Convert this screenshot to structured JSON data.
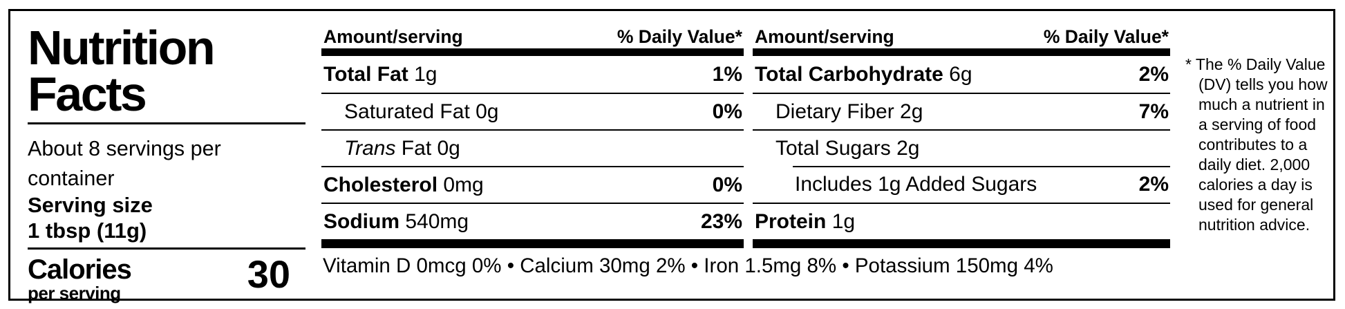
{
  "left": {
    "title_line1": "Nutrition",
    "title_line2": "Facts",
    "servings": "About 8 servings per container",
    "serving_size_label": "Serving size",
    "serving_size_value": "1 tbsp (11g)",
    "calories_label": "Calories",
    "calories_sublabel": "per serving",
    "calories_value": "30"
  },
  "columns": [
    {
      "header": {
        "amount": "Amount/serving",
        "dv": "% Daily Value*"
      },
      "rows": [
        {
          "bold": "Total Fat",
          "rest": " 1g",
          "dv": "1%"
        },
        {
          "rest": "Saturated Fat 0g",
          "dv": "0%"
        },
        {
          "italic": "Trans",
          "rest": " Fat 0g",
          "dv": ""
        },
        {
          "bold": "Cholesterol",
          "rest": " 0mg",
          "dv": "0%"
        },
        {
          "bold": "Sodium",
          "rest": " 540mg",
          "dv": "23%"
        }
      ]
    },
    {
      "header": {
        "amount": "Amount/serving",
        "dv": "% Daily Value*"
      },
      "rows": [
        {
          "bold": "Total Carbohydrate",
          "rest": " 6g",
          "dv": "2%"
        },
        {
          "rest": "Dietary Fiber 2g",
          "dv": "7%"
        },
        {
          "rest": "Total Sugars 2g",
          "dv": ""
        },
        {
          "rest": "Includes 1g Added Sugars",
          "dv": "2%"
        },
        {
          "bold": "Protein",
          "rest": " 1g",
          "dv": ""
        }
      ]
    }
  ],
  "vitamins": {
    "text": "Vitamin D 0mcg 0% • Calcium 30mg 2% • Iron 1.5mg 8% • Potassium 150mg 4%"
  },
  "footnote": {
    "text": "* The % Daily Value (DV) tells you how much a nutrient in a serving of food contributes to a daily diet. 2,000 calories a day is used for general nutrition advice."
  }
}
